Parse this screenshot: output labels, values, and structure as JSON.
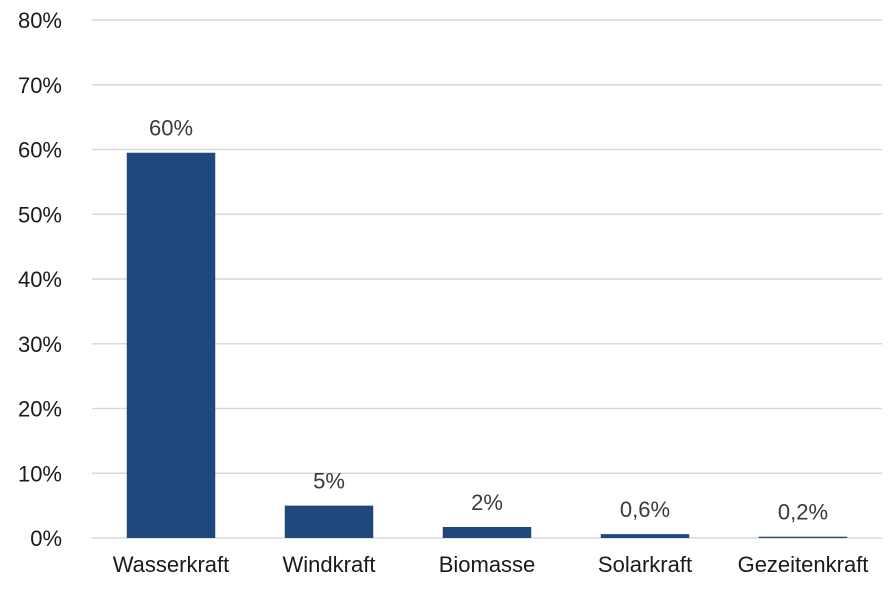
{
  "chart_data": {
    "type": "bar",
    "title": "",
    "xlabel": "",
    "ylabel": "",
    "categories": [
      "Wasserkraft",
      "Windkraft",
      "Biomasse",
      "Solarkraft",
      "Gezeitenkraft"
    ],
    "values": [
      59.5,
      5.0,
      1.7,
      0.6,
      0.2
    ],
    "data_labels": [
      "60%",
      "5%",
      "2%",
      "0,6%",
      "0,2%"
    ],
    "ylim": [
      0,
      80
    ],
    "yticks": [
      0,
      10,
      20,
      30,
      40,
      50,
      60,
      70,
      80
    ],
    "ytick_labels": [
      "0%",
      "10%",
      "20%",
      "30%",
      "40%",
      "50%",
      "60%",
      "70%",
      "80%"
    ],
    "grid": true,
    "legend": "none",
    "colors": {
      "bar": "#1f497d",
      "grid": "#d9d9d9",
      "text": "#1a1a1a"
    }
  }
}
